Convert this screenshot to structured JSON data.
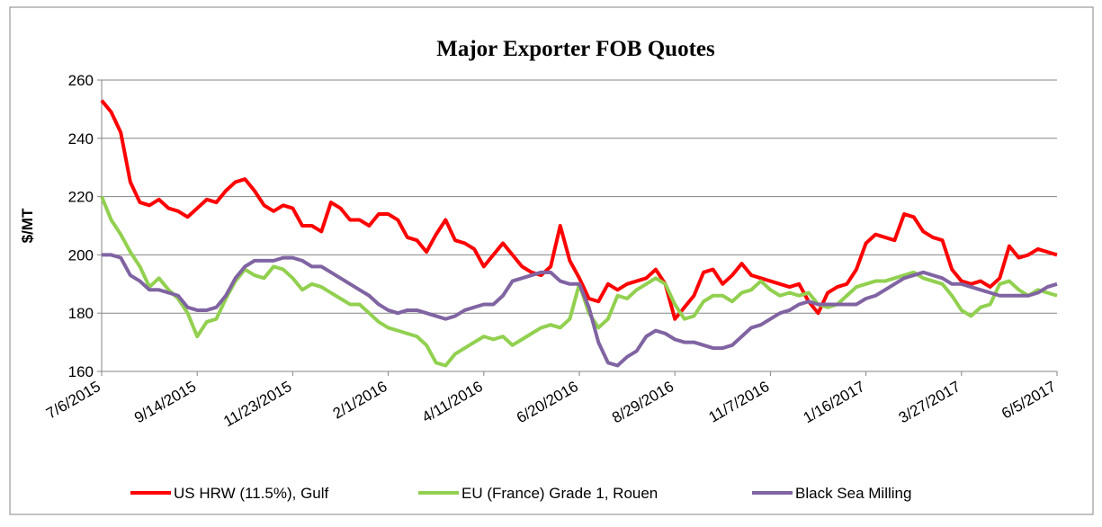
{
  "chart_data": {
    "type": "line",
    "title": "Major Exporter FOB Quotes",
    "y_label": "$/MT",
    "categories": [
      "7/6/2015",
      null,
      null,
      null,
      null,
      null,
      null,
      null,
      null,
      null,
      "9/14/2015",
      null,
      null,
      null,
      null,
      null,
      null,
      null,
      null,
      null,
      "11/23/2015",
      null,
      null,
      null,
      null,
      null,
      null,
      null,
      null,
      null,
      "2/1/2016",
      null,
      null,
      null,
      null,
      null,
      null,
      null,
      null,
      null,
      "4/11/2016",
      null,
      null,
      null,
      null,
      null,
      null,
      null,
      null,
      null,
      "6/20/2016",
      null,
      null,
      null,
      null,
      null,
      null,
      null,
      null,
      null,
      "8/29/2016",
      null,
      null,
      null,
      null,
      null,
      null,
      null,
      null,
      null,
      "11/7/2016",
      null,
      null,
      null,
      null,
      null,
      null,
      null,
      null,
      null,
      "1/16/2017",
      null,
      null,
      null,
      null,
      null,
      null,
      null,
      null,
      null,
      "3/27/2017",
      null,
      null,
      null,
      null,
      null,
      null,
      null,
      null,
      null,
      "6/5/2017"
    ],
    "series": [
      {
        "name": "US HRW (11.5%), Gulf",
        "color": "#ff0000",
        "values": [
          253,
          249,
          242,
          225,
          218,
          217,
          219,
          216,
          215,
          213,
          216,
          219,
          218,
          222,
          225,
          226,
          222,
          217,
          215,
          217,
          216,
          210,
          210,
          208,
          218,
          216,
          212,
          212,
          210,
          214,
          214,
          212,
          206,
          205,
          201,
          207,
          212,
          205,
          204,
          202,
          196,
          200,
          204,
          200,
          196,
          194,
          193,
          196,
          210,
          198,
          192,
          185,
          184,
          190,
          188,
          190,
          191,
          192,
          195,
          190,
          178,
          182,
          186,
          194,
          195,
          190,
          193,
          197,
          193,
          192,
          191,
          190,
          189,
          190,
          184,
          180,
          187,
          189,
          190,
          195,
          204,
          207,
          206,
          205,
          214,
          213,
          208,
          206,
          205,
          195,
          191,
          190,
          191,
          189,
          192,
          203,
          199,
          200,
          202,
          201,
          200
        ]
      },
      {
        "name": "EU (France) Grade 1, Rouen",
        "color": "#92d050",
        "values": [
          220,
          212,
          207,
          201,
          196,
          189,
          192,
          188,
          185,
          180,
          172,
          177,
          178,
          185,
          191,
          195,
          193,
          192,
          196,
          195,
          192,
          188,
          190,
          189,
          187,
          185,
          183,
          183,
          180,
          177,
          175,
          174,
          173,
          172,
          169,
          163,
          162,
          166,
          168,
          170,
          172,
          171,
          172,
          169,
          171,
          173,
          175,
          176,
          175,
          178,
          190,
          180,
          175,
          178,
          186,
          185,
          188,
          190,
          192,
          190,
          183,
          178,
          179,
          184,
          186,
          186,
          184,
          187,
          188,
          191,
          188,
          186,
          187,
          186,
          187,
          183,
          182,
          183,
          186,
          189,
          190,
          191,
          191,
          192,
          193,
          194,
          192,
          191,
          190,
          186,
          181,
          179,
          182,
          183,
          190,
          191,
          188,
          186,
          188,
          187,
          186
        ]
      },
      {
        "name": "Black Sea Milling",
        "color": "#8064a2",
        "values": [
          200,
          200,
          199,
          193,
          191,
          188,
          188,
          187,
          186,
          182,
          181,
          181,
          182,
          186,
          192,
          196,
          198,
          198,
          198,
          199,
          199,
          198,
          196,
          196,
          194,
          192,
          190,
          188,
          186,
          183,
          181,
          180,
          181,
          181,
          180,
          179,
          178,
          179,
          181,
          182,
          183,
          183,
          186,
          191,
          192,
          193,
          194,
          194,
          191,
          190,
          190,
          182,
          170,
          163,
          162,
          165,
          167,
          172,
          174,
          173,
          171,
          170,
          170,
          169,
          168,
          168,
          169,
          172,
          175,
          176,
          178,
          180,
          181,
          183,
          184,
          183,
          183,
          183,
          183,
          183,
          185,
          186,
          188,
          190,
          192,
          193,
          194,
          193,
          192,
          190,
          190,
          189,
          188,
          187,
          186,
          186,
          186,
          186,
          187,
          189,
          190
        ]
      }
    ],
    "ylim": [
      160,
      260
    ],
    "yticks": [
      160,
      180,
      200,
      220,
      240,
      260
    ],
    "grid": true,
    "legend": "bottom"
  }
}
